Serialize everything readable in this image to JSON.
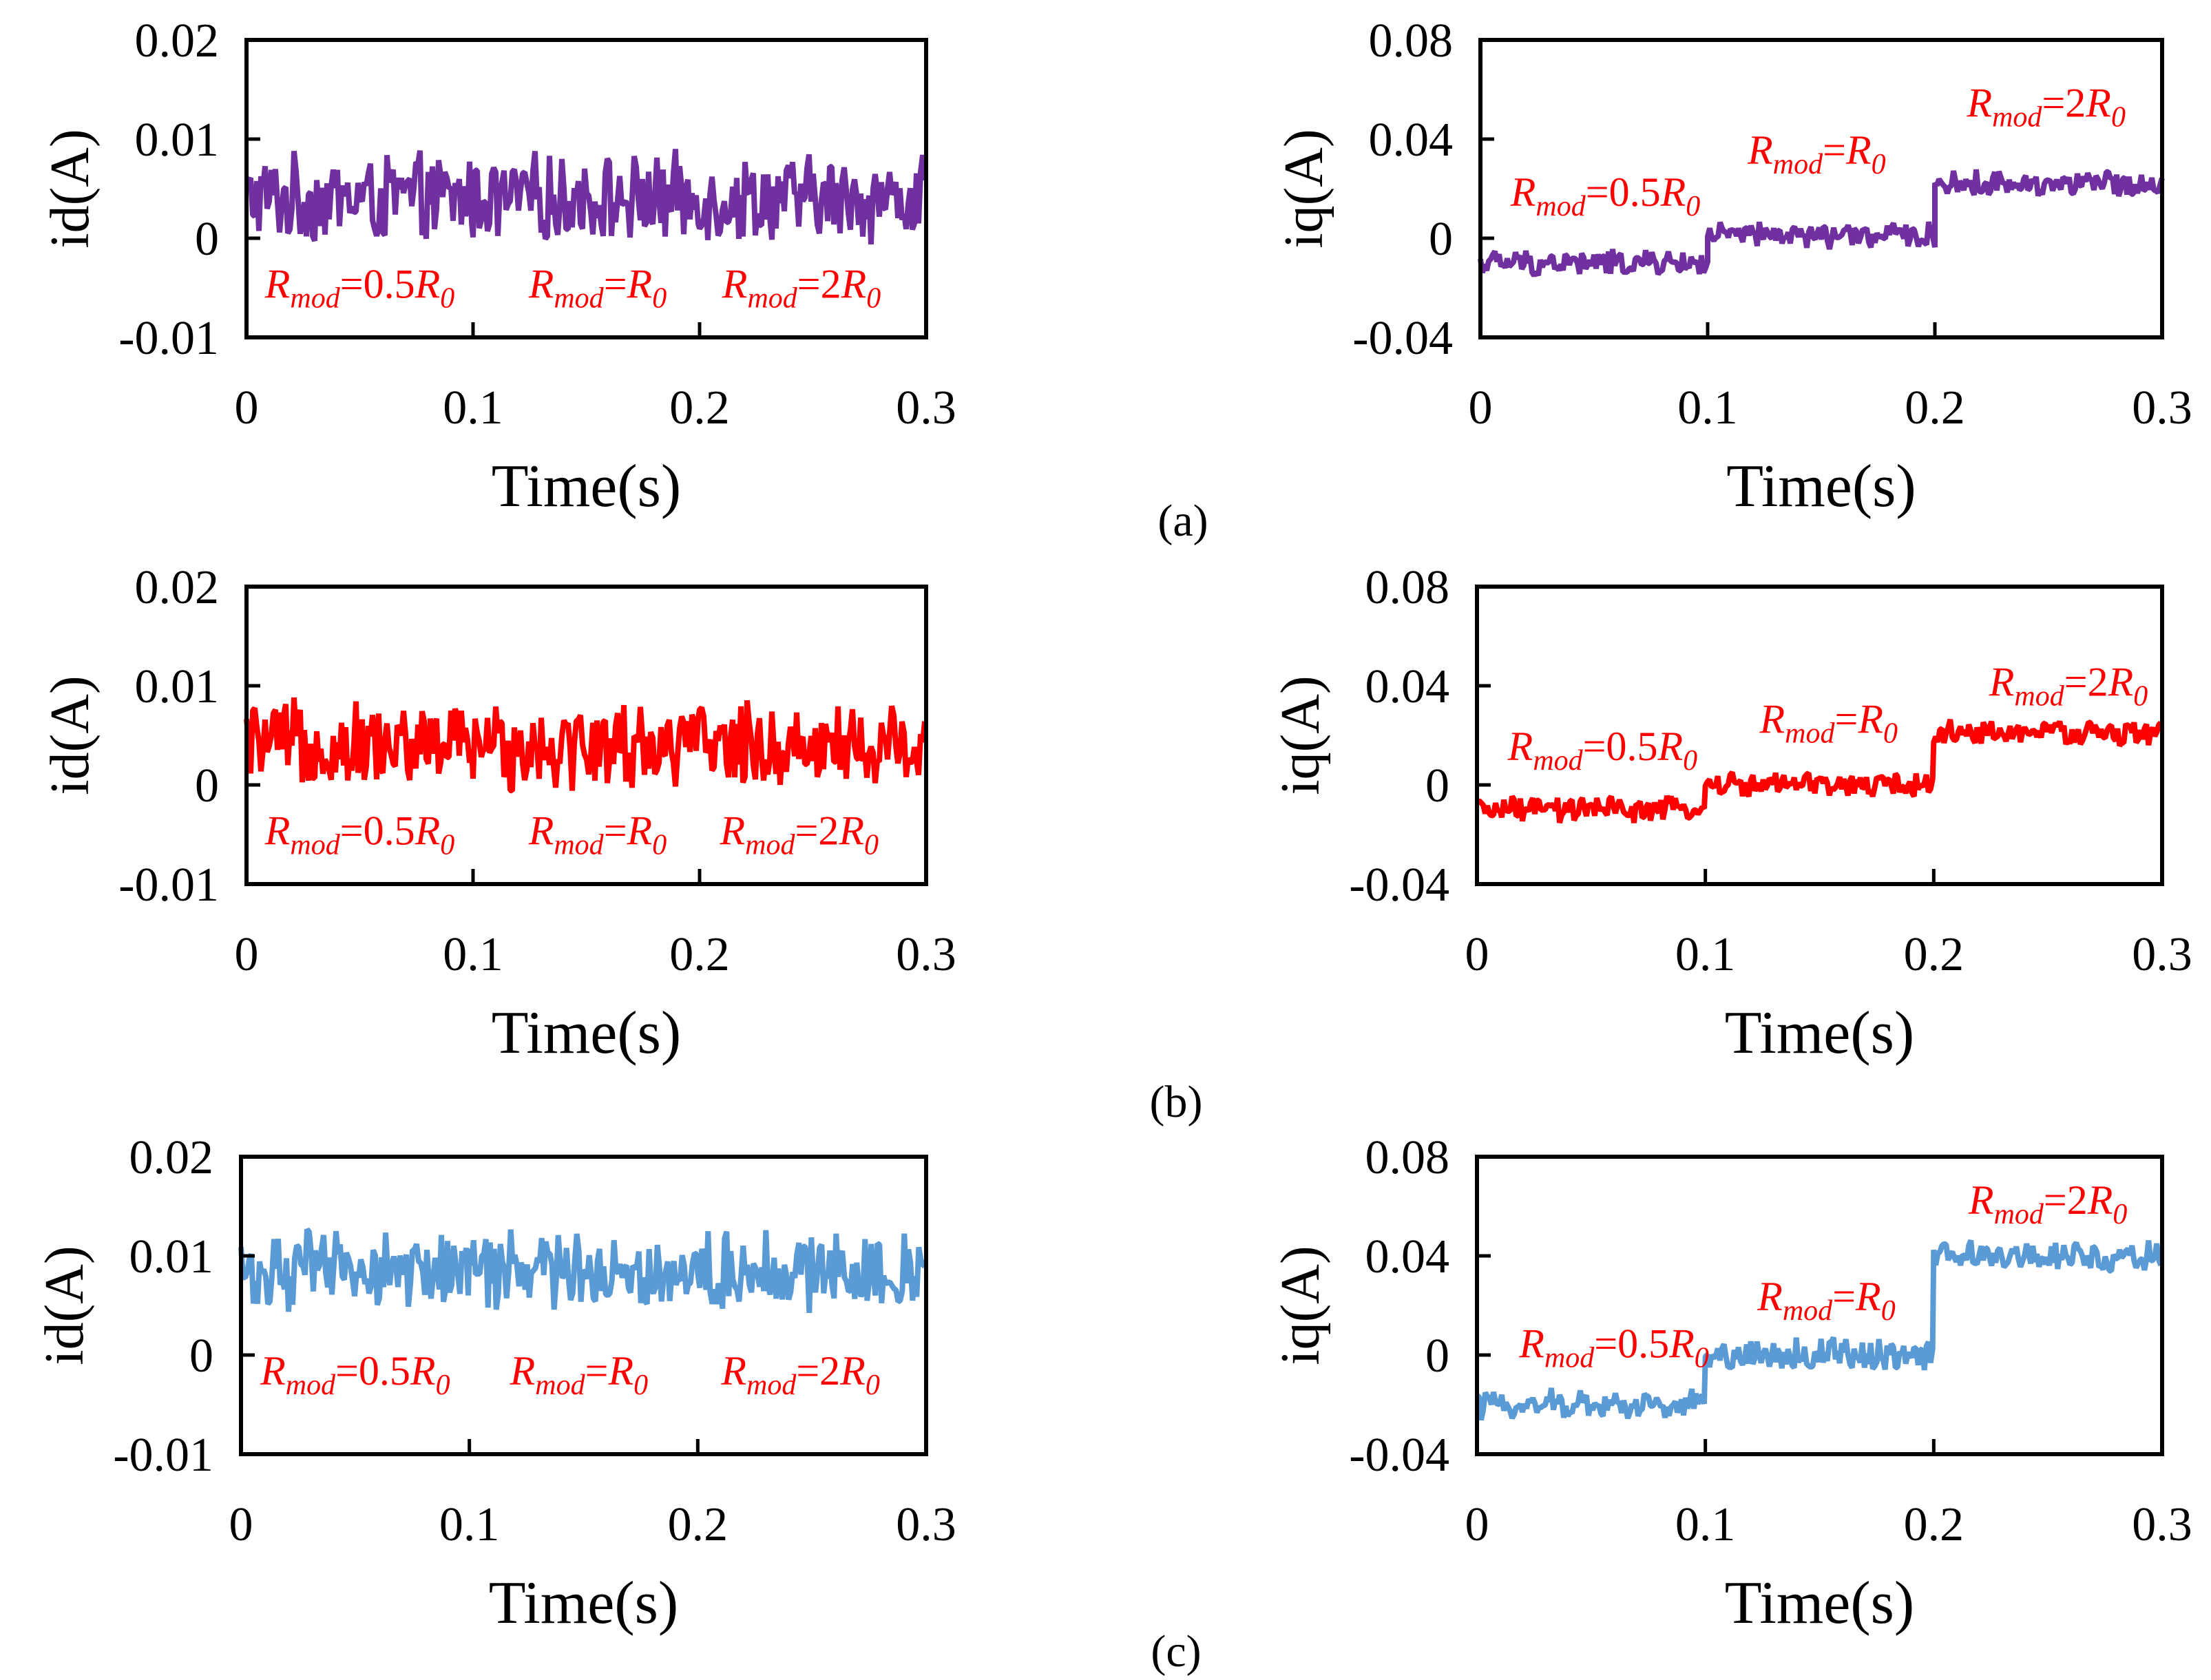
{
  "figure": {
    "panel_labels": [
      "(a)",
      "(b)",
      "(c)"
    ]
  },
  "chart_data": [
    {
      "type": "line",
      "panel": "(a)",
      "title": "",
      "xlabel": "Time(s)",
      "ylabel": "id(A)",
      "xlim": [
        0,
        0.3
      ],
      "ylim": [
        -0.01,
        0.02
      ],
      "xticks": [
        "0",
        "0.1",
        "0.2",
        "0.3"
      ],
      "yticks": [
        "0.02",
        "0.01",
        "0",
        "-0.01"
      ],
      "color": "#7030a0",
      "series": [
        {
          "name": "id",
          "segments": [
            {
              "x": [
                0,
                0.1
              ],
              "mean": 0.004,
              "band": 0.005
            },
            {
              "x": [
                0.1,
                0.2
              ],
              "mean": 0.004,
              "band": 0.005
            },
            {
              "x": [
                0.2,
                0.3
              ],
              "mean": 0.004,
              "band": 0.005
            }
          ]
        }
      ],
      "annotations": [
        {
          "base": "R",
          "sub": "mod",
          "eq": "=0.5R",
          "sub2": "0",
          "x": 0.05,
          "y": -0.006
        },
        {
          "base": "R",
          "sub": "mod",
          "eq": "=R",
          "sub2": "0",
          "x": 0.155,
          "y": -0.006
        },
        {
          "base": "R",
          "sub": "mod",
          "eq": "=2R",
          "sub2": "0",
          "x": 0.245,
          "y": -0.006
        }
      ]
    },
    {
      "type": "line",
      "panel": "(a)",
      "title": "",
      "xlabel": "Time(s)",
      "ylabel": "iq(A)",
      "xlim": [
        0,
        0.3
      ],
      "ylim": [
        -0.04,
        0.08
      ],
      "xticks": [
        "0",
        "0.1",
        "0.2",
        "0.3"
      ],
      "yticks": [
        "0.08",
        "0.04",
        "0",
        "-0.04"
      ],
      "color": "#7030a0",
      "series": [
        {
          "name": "iq",
          "segments": [
            {
              "x": [
                0,
                0.1
              ],
              "mean": -0.01,
              "band": 0.006
            },
            {
              "x": [
                0.1,
                0.2
              ],
              "mean": 0.001,
              "band": 0.006
            },
            {
              "x": [
                0.2,
                0.3
              ],
              "mean": 0.022,
              "band": 0.006
            }
          ]
        }
      ],
      "annotations": [
        {
          "base": "R",
          "sub": "mod",
          "eq": "=0.5R",
          "sub2": "0",
          "x": 0.055,
          "y": 0.013
        },
        {
          "base": "R",
          "sub": "mod",
          "eq": "=R",
          "sub2": "0",
          "x": 0.148,
          "y": 0.03
        },
        {
          "base": "R",
          "sub": "mod",
          "eq": "=2R",
          "sub2": "0",
          "x": 0.249,
          "y": 0.049
        }
      ]
    },
    {
      "type": "line",
      "panel": "(b)",
      "title": "",
      "xlabel": "Time(s)",
      "ylabel": "id(A)",
      "xlim": [
        0,
        0.3
      ],
      "ylim": [
        -0.01,
        0.02
      ],
      "xticks": [
        "0",
        "0.1",
        "0.2",
        "0.3"
      ],
      "yticks": [
        "0.02",
        "0.01",
        "0",
        "-0.01"
      ],
      "color": "#ff0000",
      "series": [
        {
          "name": "id",
          "segments": [
            {
              "x": [
                0,
                0.1
              ],
              "mean": 0.004,
              "band": 0.005
            },
            {
              "x": [
                0.1,
                0.2
              ],
              "mean": 0.004,
              "band": 0.005
            },
            {
              "x": [
                0.2,
                0.3
              ],
              "mean": 0.004,
              "band": 0.005
            }
          ]
        }
      ],
      "annotations": [
        {
          "base": "R",
          "sub": "mod",
          "eq": "=0.5R",
          "sub2": "0",
          "x": 0.05,
          "y": -0.006
        },
        {
          "base": "R",
          "sub": "mod",
          "eq": "=R",
          "sub2": "0",
          "x": 0.155,
          "y": -0.006
        },
        {
          "base": "R",
          "sub": "mod",
          "eq": "=2R",
          "sub2": "0",
          "x": 0.244,
          "y": -0.006
        }
      ]
    },
    {
      "type": "line",
      "panel": "(b)",
      "title": "",
      "xlabel": "Time(s)",
      "ylabel": "iq(A)",
      "xlim": [
        0,
        0.3
      ],
      "ylim": [
        -0.04,
        0.08
      ],
      "xticks": [
        "0",
        "0.1",
        "0.2",
        "0.3"
      ],
      "yticks": [
        "0.08",
        "0.04",
        "0",
        "-0.04"
      ],
      "color": "#ff0000",
      "series": [
        {
          "name": "iq",
          "segments": [
            {
              "x": [
                0,
                0.1
              ],
              "mean": -0.01,
              "band": 0.006
            },
            {
              "x": [
                0.1,
                0.2
              ],
              "mean": 0.0,
              "band": 0.006
            },
            {
              "x": [
                0.2,
                0.3
              ],
              "mean": 0.021,
              "band": 0.006
            }
          ]
        }
      ],
      "annotations": [
        {
          "base": "R",
          "sub": "mod",
          "eq": "=0.5R",
          "sub2": "0",
          "x": 0.055,
          "y": 0.01
        },
        {
          "base": "R",
          "sub": "mod",
          "eq": "=R",
          "sub2": "0",
          "x": 0.154,
          "y": 0.021
        },
        {
          "base": "R",
          "sub": "mod",
          "eq": "=2R",
          "sub2": "0",
          "x": 0.259,
          "y": 0.036
        }
      ]
    },
    {
      "type": "line",
      "panel": "(c)",
      "title": "",
      "xlabel": "Time(s)",
      "ylabel": "id(A)",
      "xlim": [
        0,
        0.3
      ],
      "ylim": [
        -0.01,
        0.02
      ],
      "xticks": [
        "0",
        "0.1",
        "0.2",
        "0.3"
      ],
      "yticks": [
        "0.02",
        "0.01",
        "0",
        "-0.01"
      ],
      "color": "#5b9bd5",
      "series": [
        {
          "name": "id",
          "segments": [
            {
              "x": [
                0,
                0.1
              ],
              "mean": 0.0085,
              "band": 0.0045
            },
            {
              "x": [
                0.1,
                0.2
              ],
              "mean": 0.0085,
              "band": 0.0045
            },
            {
              "x": [
                0.2,
                0.3
              ],
              "mean": 0.0085,
              "band": 0.0045
            }
          ]
        }
      ],
      "annotations": [
        {
          "base": "R",
          "sub": "mod",
          "eq": "=0.5R",
          "sub2": "0",
          "x": 0.05,
          "y": -0.003
        },
        {
          "base": "R",
          "sub": "mod",
          "eq": "=R",
          "sub2": "0",
          "x": 0.148,
          "y": -0.003
        },
        {
          "base": "R",
          "sub": "mod",
          "eq": "=2R",
          "sub2": "0",
          "x": 0.245,
          "y": -0.003
        }
      ]
    },
    {
      "type": "line",
      "panel": "(c)",
      "title": "",
      "xlabel": "Time(s)",
      "ylabel": "iq(A)",
      "xlim": [
        0,
        0.3
      ],
      "ylim": [
        -0.04,
        0.08
      ],
      "xticks": [
        "0",
        "0.1",
        "0.2",
        "0.3"
      ],
      "yticks": [
        "0.08",
        "0.04",
        "0",
        "-0.04"
      ],
      "color": "#5b9bd5",
      "series": [
        {
          "name": "iq",
          "segments": [
            {
              "x": [
                0,
                0.1
              ],
              "mean": -0.02,
              "band": 0.007
            },
            {
              "x": [
                0.1,
                0.2
              ],
              "mean": 0.0,
              "band": 0.008
            },
            {
              "x": [
                0.2,
                0.3
              ],
              "mean": 0.04,
              "band": 0.007
            }
          ]
        }
      ],
      "annotations": [
        {
          "base": "R",
          "sub": "mod",
          "eq": "=0.5R",
          "sub2": "0",
          "x": 0.06,
          "y": -0.001
        },
        {
          "base": "R",
          "sub": "mod",
          "eq": "=R",
          "sub2": "0",
          "x": 0.153,
          "y": 0.018
        },
        {
          "base": "R",
          "sub": "mod",
          "eq": "=2R",
          "sub2": "0",
          "x": 0.25,
          "y": 0.057
        }
      ]
    }
  ]
}
